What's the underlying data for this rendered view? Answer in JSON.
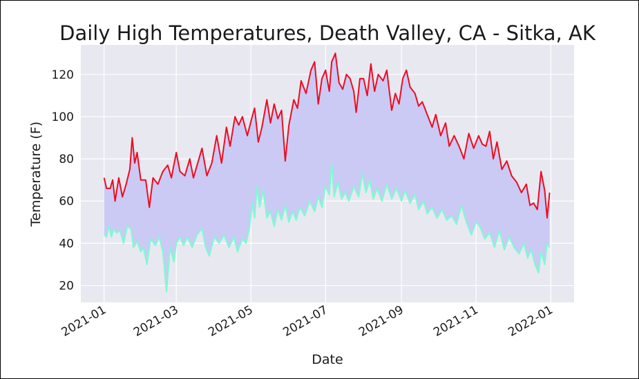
{
  "chart_data": {
    "type": "line",
    "title": "Daily High Temperatures, Death Valley, CA - Sitka, AK",
    "xlabel": "Date",
    "ylabel": "Temperature (F)",
    "x_type": "date",
    "xlim": [
      "2020-12-13",
      "2022-01-20"
    ],
    "ylim": [
      12,
      134
    ],
    "x_ticks": [
      "2021-01",
      "2021-03",
      "2021-05",
      "2021-07",
      "2021-09",
      "2021-11",
      "2022-01"
    ],
    "y_ticks": [
      20,
      40,
      60,
      80,
      100,
      120
    ],
    "grid": true,
    "fill_between": {
      "upper": "Death Valley",
      "lower": "Sitka",
      "color": "#cacaf5"
    },
    "series": [
      {
        "color": "#f00a1f",
        "points": [
          [
            "2021-01-01",
            71
          ],
          [
            "2021-01-03",
            66
          ],
          [
            "2021-01-06",
            66
          ],
          [
            "2021-01-08",
            70
          ],
          [
            "2021-01-10",
            60
          ],
          [
            "2021-01-13",
            71
          ],
          [
            "2021-01-16",
            62
          ],
          [
            "2021-01-19",
            68
          ],
          [
            "2021-01-22",
            75
          ],
          [
            "2021-01-24",
            90
          ],
          [
            "2021-01-26",
            78
          ],
          [
            "2021-01-28",
            83
          ],
          [
            "2021-01-31",
            70
          ],
          [
            "2021-02-04",
            70
          ],
          [
            "2021-02-07",
            57
          ],
          [
            "2021-02-10",
            71
          ],
          [
            "2021-02-14",
            68
          ],
          [
            "2021-02-18",
            74
          ],
          [
            "2021-02-22",
            77
          ],
          [
            "2021-02-25",
            71
          ],
          [
            "2021-03-01",
            83
          ],
          [
            "2021-03-04",
            74
          ],
          [
            "2021-03-08",
            72
          ],
          [
            "2021-03-12",
            80
          ],
          [
            "2021-03-15",
            71
          ],
          [
            "2021-03-19",
            79
          ],
          [
            "2021-03-22",
            85
          ],
          [
            "2021-03-26",
            72
          ],
          [
            "2021-03-30",
            78
          ],
          [
            "2021-04-03",
            91
          ],
          [
            "2021-04-07",
            78
          ],
          [
            "2021-04-11",
            95
          ],
          [
            "2021-04-14",
            86
          ],
          [
            "2021-04-18",
            100
          ],
          [
            "2021-04-21",
            96
          ],
          [
            "2021-04-24",
            100
          ],
          [
            "2021-04-28",
            91
          ],
          [
            "2021-05-02",
            100
          ],
          [
            "2021-05-04",
            104
          ],
          [
            "2021-05-07",
            88
          ],
          [
            "2021-05-10",
            95
          ],
          [
            "2021-05-14",
            108
          ],
          [
            "2021-05-17",
            97
          ],
          [
            "2021-05-20",
            106
          ],
          [
            "2021-05-23",
            99
          ],
          [
            "2021-05-26",
            103
          ],
          [
            "2021-05-29",
            79
          ],
          [
            "2021-06-01",
            96
          ],
          [
            "2021-06-05",
            108
          ],
          [
            "2021-06-08",
            104
          ],
          [
            "2021-06-11",
            117
          ],
          [
            "2021-06-15",
            111
          ],
          [
            "2021-06-19",
            122
          ],
          [
            "2021-06-22",
            126
          ],
          [
            "2021-06-25",
            106
          ],
          [
            "2021-06-28",
            118
          ],
          [
            "2021-07-01",
            122
          ],
          [
            "2021-07-04",
            112
          ],
          [
            "2021-07-06",
            126
          ],
          [
            "2021-07-09",
            130
          ],
          [
            "2021-07-12",
            116
          ],
          [
            "2021-07-15",
            113
          ],
          [
            "2021-07-18",
            120
          ],
          [
            "2021-07-21",
            118
          ],
          [
            "2021-07-24",
            112
          ],
          [
            "2021-07-26",
            102
          ],
          [
            "2021-07-29",
            118
          ],
          [
            "2021-08-01",
            118
          ],
          [
            "2021-08-04",
            110
          ],
          [
            "2021-08-07",
            125
          ],
          [
            "2021-08-10",
            112
          ],
          [
            "2021-08-13",
            120
          ],
          [
            "2021-08-17",
            117
          ],
          [
            "2021-08-20",
            122
          ],
          [
            "2021-08-24",
            103
          ],
          [
            "2021-08-27",
            111
          ],
          [
            "2021-08-30",
            106
          ],
          [
            "2021-09-02",
            118
          ],
          [
            "2021-09-05",
            122
          ],
          [
            "2021-09-08",
            114
          ],
          [
            "2021-09-12",
            111
          ],
          [
            "2021-09-15",
            105
          ],
          [
            "2021-09-18",
            107
          ],
          [
            "2021-09-22",
            101
          ],
          [
            "2021-09-26",
            95
          ],
          [
            "2021-09-29",
            101
          ],
          [
            "2021-10-03",
            91
          ],
          [
            "2021-10-07",
            97
          ],
          [
            "2021-10-10",
            86
          ],
          [
            "2021-10-14",
            91
          ],
          [
            "2021-10-18",
            86
          ],
          [
            "2021-10-22",
            80
          ],
          [
            "2021-10-26",
            92
          ],
          [
            "2021-10-30",
            85
          ],
          [
            "2021-11-03",
            91
          ],
          [
            "2021-11-06",
            87
          ],
          [
            "2021-11-09",
            86
          ],
          [
            "2021-11-12",
            93
          ],
          [
            "2021-11-15",
            80
          ],
          [
            "2021-11-18",
            88
          ],
          [
            "2021-11-22",
            75
          ],
          [
            "2021-11-26",
            79
          ],
          [
            "2021-11-30",
            72
          ],
          [
            "2021-12-04",
            69
          ],
          [
            "2021-12-08",
            64
          ],
          [
            "2021-12-12",
            68
          ],
          [
            "2021-12-15",
            58
          ],
          [
            "2021-12-18",
            59
          ],
          [
            "2021-12-21",
            56
          ],
          [
            "2021-12-24",
            74
          ],
          [
            "2021-12-27",
            65
          ],
          [
            "2021-12-29",
            52
          ],
          [
            "2021-12-31",
            64
          ]
        ]
      },
      {
        "color": "#7ffad2",
        "points": [
          [
            "2021-01-01",
            44
          ],
          [
            "2021-01-03",
            43
          ],
          [
            "2021-01-05",
            48
          ],
          [
            "2021-01-07",
            43
          ],
          [
            "2021-01-09",
            47
          ],
          [
            "2021-01-11",
            45
          ],
          [
            "2021-01-14",
            46
          ],
          [
            "2021-01-17",
            40
          ],
          [
            "2021-01-20",
            48
          ],
          [
            "2021-01-23",
            47
          ],
          [
            "2021-01-25",
            38
          ],
          [
            "2021-01-28",
            41
          ],
          [
            "2021-01-31",
            36
          ],
          [
            "2021-02-02",
            38
          ],
          [
            "2021-02-05",
            30
          ],
          [
            "2021-02-08",
            42
          ],
          [
            "2021-02-12",
            39
          ],
          [
            "2021-02-15",
            43
          ],
          [
            "2021-02-18",
            36
          ],
          [
            "2021-02-21",
            17
          ],
          [
            "2021-02-24",
            38
          ],
          [
            "2021-02-27",
            31
          ],
          [
            "2021-03-01",
            40
          ],
          [
            "2021-03-04",
            43
          ],
          [
            "2021-03-07",
            39
          ],
          [
            "2021-03-10",
            43
          ],
          [
            "2021-03-14",
            38
          ],
          [
            "2021-03-18",
            44
          ],
          [
            "2021-03-22",
            47
          ],
          [
            "2021-03-25",
            38
          ],
          [
            "2021-03-28",
            34
          ],
          [
            "2021-04-01",
            43
          ],
          [
            "2021-04-05",
            40
          ],
          [
            "2021-04-09",
            44
          ],
          [
            "2021-04-13",
            38
          ],
          [
            "2021-04-17",
            43
          ],
          [
            "2021-04-20",
            36
          ],
          [
            "2021-04-24",
            42
          ],
          [
            "2021-04-27",
            40
          ],
          [
            "2021-04-30",
            48
          ],
          [
            "2021-05-02",
            59
          ],
          [
            "2021-05-04",
            52
          ],
          [
            "2021-05-06",
            67
          ],
          [
            "2021-05-08",
            57
          ],
          [
            "2021-05-11",
            65
          ],
          [
            "2021-05-14",
            52
          ],
          [
            "2021-05-17",
            55
          ],
          [
            "2021-05-20",
            48
          ],
          [
            "2021-05-23",
            56
          ],
          [
            "2021-05-26",
            51
          ],
          [
            "2021-05-29",
            58
          ],
          [
            "2021-06-01",
            50
          ],
          [
            "2021-06-04",
            55
          ],
          [
            "2021-06-07",
            51
          ],
          [
            "2021-06-10",
            57
          ],
          [
            "2021-06-14",
            53
          ],
          [
            "2021-06-18",
            60
          ],
          [
            "2021-06-22",
            55
          ],
          [
            "2021-06-25",
            62
          ],
          [
            "2021-06-28",
            57
          ],
          [
            "2021-07-01",
            67
          ],
          [
            "2021-07-04",
            63
          ],
          [
            "2021-07-06",
            78
          ],
          [
            "2021-07-08",
            62
          ],
          [
            "2021-07-11",
            69
          ],
          [
            "2021-07-14",
            61
          ],
          [
            "2021-07-17",
            64
          ],
          [
            "2021-07-20",
            60
          ],
          [
            "2021-07-24",
            67
          ],
          [
            "2021-07-28",
            62
          ],
          [
            "2021-07-31",
            73
          ],
          [
            "2021-08-03",
            64
          ],
          [
            "2021-08-06",
            70
          ],
          [
            "2021-08-09",
            61
          ],
          [
            "2021-08-12",
            66
          ],
          [
            "2021-08-16",
            60
          ],
          [
            "2021-08-20",
            68
          ],
          [
            "2021-08-24",
            61
          ],
          [
            "2021-08-28",
            66
          ],
          [
            "2021-09-01",
            60
          ],
          [
            "2021-09-04",
            65
          ],
          [
            "2021-09-08",
            59
          ],
          [
            "2021-09-12",
            63
          ],
          [
            "2021-09-15",
            56
          ],
          [
            "2021-09-19",
            60
          ],
          [
            "2021-09-22",
            54
          ],
          [
            "2021-09-26",
            57
          ],
          [
            "2021-09-30",
            52
          ],
          [
            "2021-10-04",
            56
          ],
          [
            "2021-10-08",
            51
          ],
          [
            "2021-10-12",
            53
          ],
          [
            "2021-10-16",
            49
          ],
          [
            "2021-10-20",
            58
          ],
          [
            "2021-10-24",
            50
          ],
          [
            "2021-10-28",
            44
          ],
          [
            "2021-11-01",
            50
          ],
          [
            "2021-11-04",
            48
          ],
          [
            "2021-11-08",
            42
          ],
          [
            "2021-11-12",
            45
          ],
          [
            "2021-11-16",
            38
          ],
          [
            "2021-11-20",
            46
          ],
          [
            "2021-11-24",
            37
          ],
          [
            "2021-11-28",
            43
          ],
          [
            "2021-12-02",
            38
          ],
          [
            "2021-12-06",
            35
          ],
          [
            "2021-12-10",
            40
          ],
          [
            "2021-12-13",
            33
          ],
          [
            "2021-12-16",
            37
          ],
          [
            "2021-12-19",
            30
          ],
          [
            "2021-12-22",
            26
          ],
          [
            "2021-12-24",
            36
          ],
          [
            "2021-12-27",
            30
          ],
          [
            "2021-12-29",
            40
          ],
          [
            "2021-12-31",
            38
          ]
        ]
      }
    ]
  }
}
